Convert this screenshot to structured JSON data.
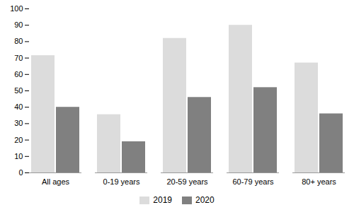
{
  "chart_data": {
    "type": "bar",
    "categories": [
      "All ages",
      "0-19 years",
      "20-59 years",
      "60-79 years",
      "80+ years"
    ],
    "series": [
      {
        "name": "2019",
        "color": "#dcdcdc",
        "values": [
          71.5,
          35.5,
          82,
          90,
          67
        ]
      },
      {
        "name": "2020",
        "color": "#808080",
        "values": [
          40,
          19,
          46,
          52,
          36
        ]
      }
    ],
    "ylim": [
      0,
      100
    ],
    "yticks": [
      0,
      10,
      20,
      30,
      40,
      50,
      60,
      70,
      80,
      90,
      100
    ],
    "grid": false,
    "legend": "bottom"
  }
}
